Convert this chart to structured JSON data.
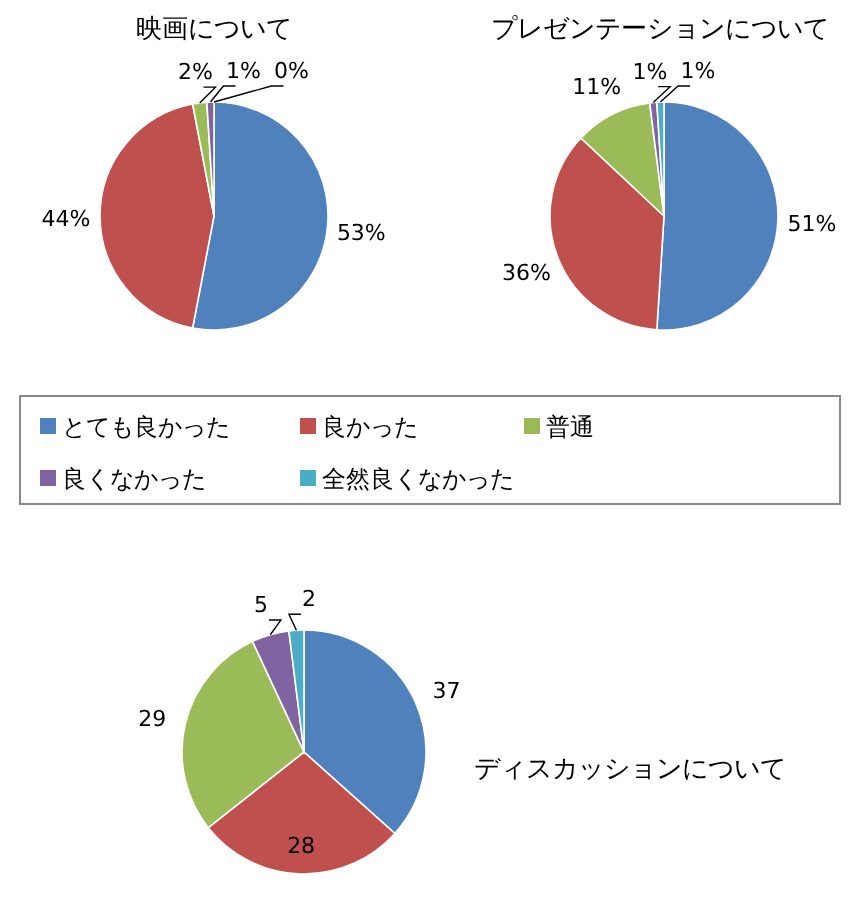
{
  "chart_data": [
    {
      "type": "pie",
      "title": "映画について",
      "categories": [
        "とても良かった",
        "良かった",
        "普通",
        "良くなかった",
        "全然良くなかった"
      ],
      "values": [
        53,
        44,
        2,
        1,
        0
      ],
      "value_labels": [
        "53%",
        "44%",
        "2%",
        "1%",
        "0%"
      ],
      "colors": [
        "#4f81bd",
        "#c0504d",
        "#9bbb59",
        "#8064a2",
        "#4bacc6"
      ],
      "legend": "bottom"
    },
    {
      "type": "pie",
      "title": "プレゼンテーションについて",
      "values": [
        51,
        36,
        11,
        1,
        1
      ],
      "value_labels": [
        "51%",
        "36%",
        "11%",
        "1%",
        "1%"
      ],
      "colors": [
        "#4f81bd",
        "#c0504d",
        "#9bbb59",
        "#8064a2",
        "#4bacc6"
      ]
    },
    {
      "type": "pie",
      "title": "ディスカッションについて",
      "values": [
        37,
        28,
        29,
        5,
        2
      ],
      "data_labels": true,
      "colors": [
        "#4f81bd",
        "#c0504d",
        "#9bbb59",
        "#8064a2",
        "#4bacc6"
      ]
    }
  ]
}
